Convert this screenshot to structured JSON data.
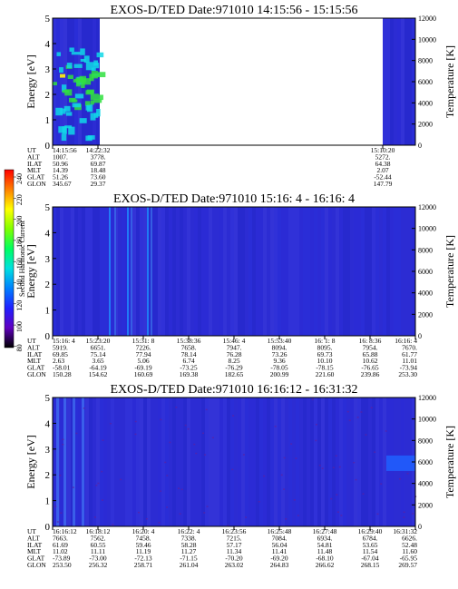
{
  "colors": {
    "background_blue": "#2b2bd6",
    "hot_cyan": "#10d8e8",
    "hot_green": "#30e040",
    "hot_yellow": "#f0e020",
    "axis": "#000000"
  },
  "colorbar": {
    "label": "Second Harmonic Current",
    "ticks": [
      "240",
      "220",
      "200",
      "180",
      "160",
      "140",
      "120",
      "100",
      "80"
    ],
    "stops": [
      "#ff0000",
      "#ff8000",
      "#ffff00",
      "#80ff00",
      "#00ff60",
      "#00e0e0",
      "#0080ff",
      "#2020ff",
      "#6000c0",
      "#000000"
    ]
  },
  "chart_data": [
    {
      "type": "heatmap",
      "title": "EXOS-D/TED   Date:971010  14:15:56 - 15:15:56",
      "ylabel": "Energy [eV]",
      "ylabel_right": "Temperature [K]",
      "ylim": [
        0,
        5
      ],
      "ylim_right": [
        0,
        12000
      ],
      "yticks": [
        "0",
        "1",
        "2",
        "3",
        "4",
        "5"
      ],
      "yticks_right": [
        "0",
        "2000",
        "4000",
        "6000",
        "8000",
        "10000",
        "12000"
      ],
      "data_intervals": [
        [
          0,
          0.13
        ],
        [
          0.91,
          1.0
        ]
      ],
      "orbit_table": {
        "row_labels": [
          "UT",
          "ALT",
          "ILAT",
          "MLT",
          "GLAT",
          "GLON"
        ],
        "columns": [
          {
            "pos": 0.0,
            "values": [
              "14:15:56",
              "1007.",
              "50.96",
              "14.39",
              "51.26",
              "345.67"
            ]
          },
          {
            "pos": 0.125,
            "values": [
              "14:22:32",
              "3778.",
              "69.87",
              "18.48",
              "73.60",
              "29.37"
            ]
          },
          {
            "pos": 0.91,
            "values": [
              "15:10:20",
              "5272.",
              "64.38",
              "2.07",
              "-52.44",
              "147.79"
            ]
          }
        ]
      }
    },
    {
      "type": "heatmap",
      "title": "EXOS-D/TED   Date:971010  15:16: 4 - 16:16: 4",
      "ylabel": "Energy [eV]",
      "ylabel_right": "Temperature [K]",
      "ylim": [
        0,
        5
      ],
      "ylim_right": [
        0,
        12000
      ],
      "yticks": [
        "0",
        "1",
        "2",
        "3",
        "4",
        "5"
      ],
      "yticks_right": [
        "0",
        "2000",
        "4000",
        "6000",
        "8000",
        "10000",
        "12000"
      ],
      "data_intervals": [
        [
          0,
          1.0
        ]
      ],
      "orbit_table": {
        "row_labels": [
          "UT",
          "ALT",
          "ILAT",
          "MLT",
          "GLAT",
          "GLON"
        ],
        "columns": [
          {
            "pos": 0.0,
            "values": [
              "15:16: 4",
              "5919.",
              "69.85",
              "2.63",
              "-58.01",
              "150.28"
            ]
          },
          {
            "pos": 0.125,
            "values": [
              "15:23:20",
              "6651.",
              "75.14",
              "3.65",
              "-64.19",
              "154.62"
            ]
          },
          {
            "pos": 0.25,
            "values": [
              "15:31: 8",
              "7226.",
              "77.94",
              "5.06",
              "-69.19",
              "160.69"
            ]
          },
          {
            "pos": 0.375,
            "values": [
              "15:38:36",
              "7658.",
              "78.14",
              "6.74",
              "-73.25",
              "169.38"
            ]
          },
          {
            "pos": 0.5,
            "values": [
              "15:46: 4",
              "7947.",
              "76.28",
              "8.25",
              "-76.29",
              "182.65"
            ]
          },
          {
            "pos": 0.625,
            "values": [
              "15:53:40",
              "8094.",
              "73.26",
              "9.36",
              "-78.05",
              "200.99"
            ]
          },
          {
            "pos": 0.75,
            "values": [
              "16: 1: 8",
              "8095.",
              "69.73",
              "10.10",
              "-78.15",
              "221.60"
            ]
          },
          {
            "pos": 0.875,
            "values": [
              "16: 8:36",
              "7954.",
              "65.88",
              "10.62",
              "-76.65",
              "239.86"
            ]
          },
          {
            "pos": 1.0,
            "values": [
              "16:16: 4",
              "7670.",
              "61.77",
              "11.01",
              "-73.94",
              "253.30"
            ]
          }
        ]
      }
    },
    {
      "type": "heatmap",
      "title": "EXOS-D/TED   Date:971010  16:16:12 - 16:31:32",
      "ylabel": "Energy [eV]",
      "ylabel_right": "Temperature [K]",
      "ylim": [
        0,
        5
      ],
      "ylim_right": [
        0,
        12000
      ],
      "yticks": [
        "0",
        "1",
        "2",
        "3",
        "4",
        "5"
      ],
      "yticks_right": [
        "0",
        "2000",
        "4000",
        "6000",
        "8000",
        "10000",
        "12000"
      ],
      "data_intervals": [
        [
          0,
          1.0
        ]
      ],
      "orbit_table": {
        "row_labels": [
          "UT",
          "ALT",
          "ILAT",
          "MLT",
          "GLAT",
          "GLON"
        ],
        "columns": [
          {
            "pos": 0.0,
            "values": [
              "16:16:12",
              "7663.",
              "61.69",
              "11.02",
              "-73.89",
              "253.50"
            ]
          },
          {
            "pos": 0.125,
            "values": [
              "16:18:12",
              "7562.",
              "60.55",
              "11.11",
              "-73.00",
              "256.32"
            ]
          },
          {
            "pos": 0.25,
            "values": [
              "16:20: 4",
              "7458.",
              "59.46",
              "11.19",
              "-72.13",
              "258.71"
            ]
          },
          {
            "pos": 0.375,
            "values": [
              "16:22: 4",
              "7338.",
              "58.28",
              "11.27",
              "-71.15",
              "261.04"
            ]
          },
          {
            "pos": 0.5,
            "values": [
              "16:23:56",
              "7215.",
              "57.17",
              "11.34",
              "-70.20",
              "263.02"
            ]
          },
          {
            "pos": 0.625,
            "values": [
              "16:25:48",
              "7084.",
              "56.04",
              "11.41",
              "-69.20",
              "264.83"
            ]
          },
          {
            "pos": 0.75,
            "values": [
              "16:27:48",
              "6934.",
              "54.81",
              "11.48",
              "-68.10",
              "266.62"
            ]
          },
          {
            "pos": 0.875,
            "values": [
              "16:29:40",
              "6784.",
              "53.65",
              "11.54",
              "-67.04",
              "268.15"
            ]
          },
          {
            "pos": 1.0,
            "values": [
              "16:31:32",
              "6626.",
              "52.48",
              "11.60",
              "-65.95",
              "269.57"
            ]
          }
        ]
      }
    }
  ]
}
